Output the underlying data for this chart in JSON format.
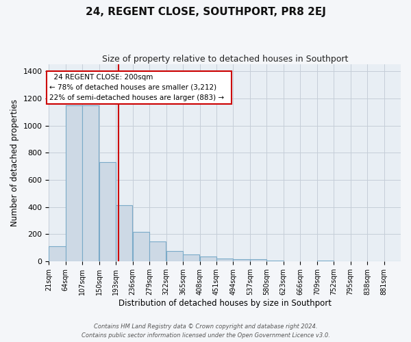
{
  "title": "24, REGENT CLOSE, SOUTHPORT, PR8 2EJ",
  "subtitle": "Size of property relative to detached houses in Southport",
  "xlabel": "Distribution of detached houses by size in Southport",
  "ylabel": "Number of detached properties",
  "bar_color": "#cdd9e5",
  "bar_edge_color": "#7aaac8",
  "background_color": "#e8eef4",
  "plot_bg_color": "#e8eef4",
  "grid_color": "#c5ced8",
  "red_line_x": 200,
  "annotation_title": "24 REGENT CLOSE: 200sqm",
  "annotation_line1": "← 78% of detached houses are smaller (3,212)",
  "annotation_line2": "22% of semi-detached houses are larger (883) →",
  "annotation_box_edge": "#cc0000",
  "bins": [
    21,
    64,
    107,
    150,
    193,
    236,
    279,
    322,
    365,
    408,
    451,
    494,
    537,
    580,
    623,
    666,
    709,
    752,
    795,
    838,
    881
  ],
  "values": [
    110,
    1150,
    1150,
    730,
    415,
    220,
    145,
    75,
    50,
    35,
    20,
    15,
    15,
    5,
    3,
    0,
    5,
    0,
    0,
    0,
    2
  ],
  "ylim": [
    0,
    1450
  ],
  "yticks": [
    0,
    200,
    400,
    600,
    800,
    1000,
    1200,
    1400
  ],
  "footer_line1": "Contains HM Land Registry data © Crown copyright and database right 2024.",
  "footer_line2": "Contains public sector information licensed under the Open Government Licence v3.0."
}
